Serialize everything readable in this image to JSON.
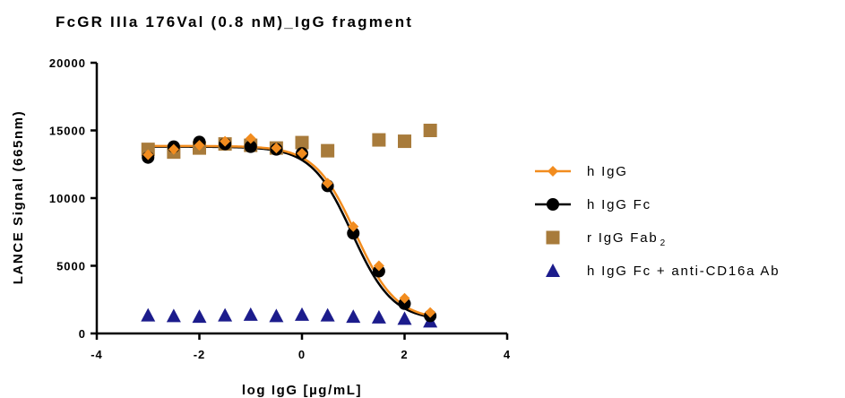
{
  "chart_data": {
    "type": "scatter",
    "title": "FcGR IIIa 176Val (0.8 nM)_IgG fragment",
    "xlabel": "log IgG [µg/mL]",
    "ylabel": "LANCE Signal (665nm)",
    "xlim": [
      -4,
      4
    ],
    "ylim": [
      0,
      20000
    ],
    "xticks": [
      -4,
      -2,
      0,
      2,
      4
    ],
    "xtick_labels": [
      "-4",
      "-2",
      "0",
      "2",
      "4"
    ],
    "yticks": [
      0,
      5000,
      10000,
      15000,
      20000
    ],
    "ytick_labels": [
      "0",
      "5000",
      "10000",
      "15000",
      "20000"
    ],
    "legend_position": "right",
    "series": [
      {
        "name": "h IgG",
        "color": "#F28C1E",
        "marker": "diamond",
        "x": [
          -3,
          -2.5,
          -2,
          -1.5,
          -1,
          -0.5,
          0,
          0.5,
          1,
          1.5,
          2,
          2.5
        ],
        "y": [
          13200,
          13600,
          13900,
          14200,
          14400,
          13700,
          13300,
          11100,
          7900,
          5000,
          2600,
          1550
        ],
        "fit": {
          "bottom": 1000,
          "top": 13850,
          "logEC50": 1.04,
          "hill": -1.1
        }
      },
      {
        "name": "h IgG Fc",
        "color": "#000000",
        "marker": "circle",
        "x": [
          -3,
          -2.5,
          -2,
          -1.5,
          -1,
          -0.5,
          0,
          0.5,
          1,
          1.5,
          2,
          2.5
        ],
        "y": [
          13000,
          13800,
          14150,
          14000,
          13800,
          13600,
          13300,
          10900,
          7400,
          4600,
          2200,
          1300
        ],
        "fit": {
          "bottom": 950,
          "top": 13800,
          "logEC50": 0.98,
          "hill": -1.1
        }
      },
      {
        "name": "r IgG Fab",
        "name_subscript": "2",
        "color": "#A87B3B",
        "marker": "square",
        "x": [
          -3,
          -2.5,
          -2,
          -1.5,
          -1,
          -0.5,
          0,
          0.5,
          1.5,
          2,
          2.5
        ],
        "y": [
          13600,
          13400,
          13700,
          14000,
          13900,
          13700,
          14100,
          13500,
          14300,
          14200,
          15000
        ]
      },
      {
        "name": "h IgG Fc + anti-CD16a Ab",
        "color": "#1C1C8C",
        "marker": "triangle",
        "x": [
          -3,
          -2.5,
          -2,
          -1.5,
          -1,
          -0.5,
          0,
          0.5,
          1,
          1.5,
          2,
          2.5
        ],
        "y": [
          1350,
          1300,
          1250,
          1350,
          1400,
          1300,
          1400,
          1350,
          1250,
          1200,
          1100,
          900
        ]
      }
    ]
  }
}
